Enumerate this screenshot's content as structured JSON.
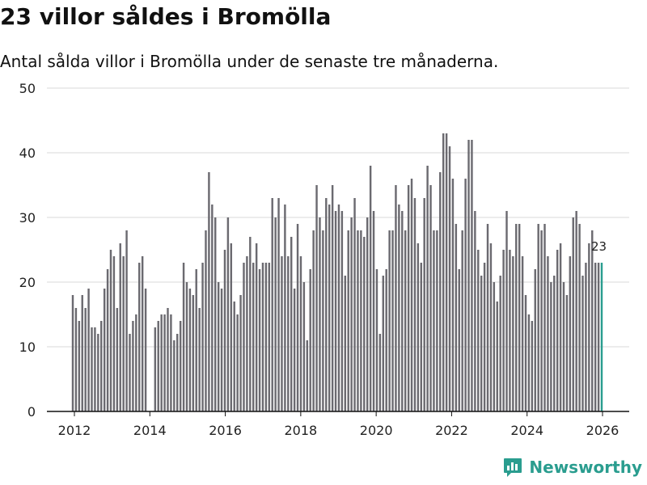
{
  "chart_data": {
    "type": "bar",
    "title": "23 villor såldes i Bromölla",
    "subtitle": "Antal sålda villor i Bromölla under de senaste tre månaderna.",
    "xlabel": "",
    "ylabel": "",
    "ylim": [
      0,
      50
    ],
    "yticks": [
      0,
      10,
      20,
      30,
      40,
      50
    ],
    "xticks": [
      "2012",
      "2014",
      "2016",
      "2018",
      "2020",
      "2022",
      "2024",
      "2026"
    ],
    "x_start": "2012-01",
    "x_end": "2026-01",
    "series": [
      {
        "name": "Antal sålda villor (rullande tre månader)",
        "values": [
          18,
          16,
          14,
          18,
          16,
          19,
          13,
          13,
          12,
          14,
          19,
          22,
          25,
          24,
          16,
          26,
          24,
          28,
          12,
          14,
          15,
          23,
          24,
          19,
          0,
          0,
          13,
          14,
          15,
          15,
          16,
          15,
          11,
          12,
          14,
          23,
          20,
          19,
          18,
          22,
          16,
          23,
          28,
          37,
          32,
          30,
          20,
          19,
          25,
          30,
          26,
          17,
          15,
          18,
          23,
          24,
          27,
          23,
          26,
          22,
          23,
          23,
          23,
          33,
          30,
          33,
          24,
          32,
          24,
          27,
          19,
          29,
          24,
          20,
          11,
          22,
          28,
          35,
          30,
          28,
          33,
          32,
          35,
          31,
          32,
          31,
          21,
          28,
          30,
          33,
          28,
          28,
          27,
          30,
          38,
          31,
          22,
          12,
          21,
          22,
          28,
          28,
          35,
          32,
          31,
          28,
          35,
          36,
          33,
          26,
          23,
          33,
          38,
          35,
          28,
          28,
          37,
          43,
          43,
          41,
          36,
          29,
          22,
          28,
          36,
          42,
          42,
          31,
          25,
          21,
          23,
          29,
          26,
          20,
          17,
          21,
          25,
          31,
          25,
          24,
          29,
          29,
          24,
          18,
          15,
          14,
          22,
          29,
          28,
          29,
          24,
          20,
          21,
          25,
          26,
          20,
          18,
          24,
          30,
          31,
          29,
          21,
          23,
          26,
          28,
          23,
          23,
          23
        ],
        "color": "#6b6a70"
      }
    ],
    "highlight": {
      "value": 23,
      "label": "23",
      "color": "#2a9d8f"
    }
  },
  "brand": {
    "name": "Newsworthy",
    "icon": "newsworthy-logo-icon",
    "color": "#2a9d8f"
  }
}
